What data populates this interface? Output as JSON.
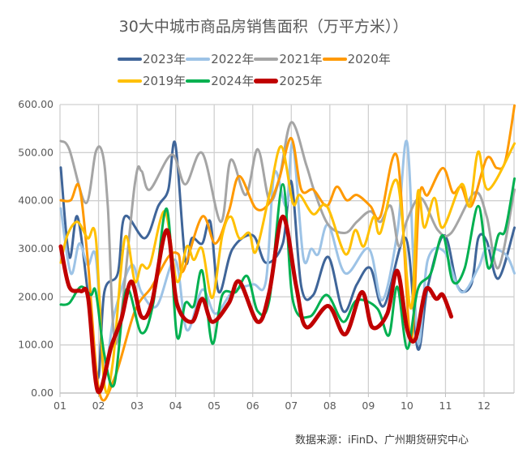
{
  "chart_data": {
    "type": "line",
    "title": "30大中城市商品房销售面积（万平方米））",
    "xlabel": "",
    "ylabel": "",
    "ylim": [
      0,
      600
    ],
    "xlim": [
      1,
      12.79
    ],
    "grid": true,
    "legend_position": "top",
    "x_ticks": [
      "01",
      "02",
      "03",
      "04",
      "05",
      "06",
      "07",
      "08",
      "09",
      "10",
      "11",
      "12"
    ],
    "y_ticks": [
      "0.00",
      "100.00",
      "200.00",
      "300.00",
      "400.00",
      "500.00",
      "600.00"
    ],
    "series": [
      {
        "name": "2023年",
        "color": "#3F6599",
        "width": 3,
        "points": [
          [
            1.02,
            469
          ],
          [
            1.24,
            283
          ],
          [
            1.45,
            367
          ],
          [
            1.72,
            210
          ],
          [
            1.98,
            30
          ],
          [
            2.15,
            210
          ],
          [
            2.5,
            249
          ],
          [
            2.68,
            367
          ],
          [
            3.2,
            322
          ],
          [
            3.55,
            389
          ],
          [
            3.81,
            423
          ],
          [
            3.99,
            519
          ],
          [
            4.25,
            277
          ],
          [
            4.42,
            322
          ],
          [
            4.69,
            311
          ],
          [
            4.9,
            356
          ],
          [
            5.12,
            210
          ],
          [
            5.47,
            299
          ],
          [
            6.0,
            328
          ],
          [
            6.34,
            271
          ],
          [
            6.78,
            311
          ],
          [
            7.0,
            440
          ],
          [
            7.26,
            221
          ],
          [
            7.57,
            204
          ],
          [
            7.96,
            283
          ],
          [
            8.35,
            170
          ],
          [
            8.7,
            226
          ],
          [
            9.05,
            260
          ],
          [
            9.4,
            181
          ],
          [
            9.97,
            322
          ],
          [
            10.28,
            92
          ],
          [
            10.54,
            221
          ],
          [
            10.97,
            328
          ],
          [
            11.32,
            221
          ],
          [
            11.67,
            226
          ],
          [
            11.85,
            322
          ],
          [
            12.07,
            316
          ],
          [
            12.37,
            238
          ],
          [
            12.79,
            344
          ]
        ]
      },
      {
        "name": "2022年",
        "color": "#9DC3E6",
        "width": 3,
        "points": [
          [
            1.02,
            384
          ],
          [
            1.28,
            249
          ],
          [
            1.5,
            311
          ],
          [
            1.72,
            266
          ],
          [
            1.93,
            283
          ],
          [
            2.15,
            52
          ],
          [
            2.41,
            165
          ],
          [
            2.85,
            266
          ],
          [
            3.11,
            210
          ],
          [
            3.51,
            181
          ],
          [
            3.99,
            277
          ],
          [
            4.29,
            131
          ],
          [
            4.69,
            215
          ],
          [
            5.03,
            165
          ],
          [
            5.47,
            210
          ],
          [
            6.0,
            226
          ],
          [
            6.34,
            232
          ],
          [
            6.56,
            457
          ],
          [
            6.87,
            389
          ],
          [
            7.04,
            519
          ],
          [
            7.31,
            283
          ],
          [
            7.52,
            300
          ],
          [
            7.7,
            289
          ],
          [
            7.96,
            350
          ],
          [
            8.4,
            249
          ],
          [
            9.01,
            300
          ],
          [
            9.36,
            193
          ],
          [
            9.75,
            333
          ],
          [
            10.01,
            519
          ],
          [
            10.28,
            108
          ],
          [
            10.54,
            277
          ],
          [
            10.97,
            294
          ],
          [
            11.41,
            210
          ],
          [
            11.85,
            260
          ],
          [
            12.07,
            300
          ],
          [
            12.55,
            289
          ],
          [
            12.79,
            249
          ]
        ]
      },
      {
        "name": "2021年",
        "color": "#A5A5A5",
        "width": 3,
        "points": [
          [
            1.02,
            524
          ],
          [
            1.24,
            507
          ],
          [
            1.67,
            395
          ],
          [
            1.93,
            502
          ],
          [
            2.11,
            496
          ],
          [
            2.24,
            389
          ],
          [
            2.46,
            103
          ],
          [
            2.94,
            434
          ],
          [
            3.11,
            462
          ],
          [
            3.33,
            423
          ],
          [
            3.9,
            496
          ],
          [
            4.25,
            434
          ],
          [
            4.69,
            499
          ],
          [
            5.17,
            356
          ],
          [
            5.43,
            485
          ],
          [
            5.82,
            412
          ],
          [
            6.13,
            507
          ],
          [
            6.43,
            401
          ],
          [
            6.69,
            446
          ],
          [
            7.0,
            563
          ],
          [
            7.39,
            474
          ],
          [
            7.61,
            417
          ],
          [
            7.96,
            350
          ],
          [
            8.4,
            333
          ],
          [
            8.7,
            356
          ],
          [
            9.05,
            378
          ],
          [
            9.31,
            356
          ],
          [
            9.58,
            389
          ],
          [
            9.79,
            305
          ],
          [
            10.01,
            361
          ],
          [
            10.36,
            406
          ],
          [
            10.8,
            339
          ],
          [
            11.15,
            333
          ],
          [
            11.76,
            417
          ],
          [
            12.07,
            367
          ],
          [
            12.37,
            260
          ],
          [
            12.79,
            423
          ]
        ]
      },
      {
        "name": "2020年",
        "color": "#FF9900",
        "width": 3,
        "points": [
          [
            1.02,
            401
          ],
          [
            1.28,
            401
          ],
          [
            1.5,
            429
          ],
          [
            1.72,
            277
          ],
          [
            2.02,
            2
          ],
          [
            2.41,
            30
          ],
          [
            2.94,
            170
          ],
          [
            3.38,
            221
          ],
          [
            3.81,
            283
          ],
          [
            4.07,
            289
          ],
          [
            4.2,
            254
          ],
          [
            4.69,
            367
          ],
          [
            5.03,
            311
          ],
          [
            5.38,
            378
          ],
          [
            5.65,
            451
          ],
          [
            6.08,
            384
          ],
          [
            6.43,
            395
          ],
          [
            6.69,
            446
          ],
          [
            7.0,
            530
          ],
          [
            7.26,
            423
          ],
          [
            7.57,
            423
          ],
          [
            7.92,
            389
          ],
          [
            8.18,
            429
          ],
          [
            8.44,
            401
          ],
          [
            8.7,
            412
          ],
          [
            9.05,
            389
          ],
          [
            9.31,
            367
          ],
          [
            9.75,
            490
          ],
          [
            10.1,
            108
          ],
          [
            10.32,
            406
          ],
          [
            10.54,
            412
          ],
          [
            10.93,
            468
          ],
          [
            11.19,
            417
          ],
          [
            11.41,
            429
          ],
          [
            11.67,
            389
          ],
          [
            12.07,
            488
          ],
          [
            12.33,
            468
          ],
          [
            12.55,
            482
          ],
          [
            12.79,
            598
          ]
        ]
      },
      {
        "name": "2019年",
        "color": "#FFC000",
        "width": 3,
        "points": [
          [
            1.02,
            271
          ],
          [
            1.19,
            328
          ],
          [
            1.45,
            356
          ],
          [
            1.72,
            322
          ],
          [
            1.93,
            322
          ],
          [
            2.15,
            19
          ],
          [
            2.37,
            63
          ],
          [
            2.68,
            322
          ],
          [
            2.94,
            232
          ],
          [
            3.11,
            266
          ],
          [
            3.33,
            266
          ],
          [
            3.72,
            378
          ],
          [
            4.03,
            232
          ],
          [
            4.29,
            305
          ],
          [
            4.47,
            277
          ],
          [
            4.69,
            300
          ],
          [
            4.95,
            198
          ],
          [
            5.21,
            328
          ],
          [
            5.43,
            367
          ],
          [
            5.65,
            322
          ],
          [
            5.91,
            333
          ],
          [
            6.08,
            294
          ],
          [
            6.43,
            412
          ],
          [
            6.74,
            513
          ],
          [
            7.04,
            395
          ],
          [
            7.22,
            412
          ],
          [
            7.57,
            372
          ],
          [
            7.92,
            389
          ],
          [
            8.4,
            289
          ],
          [
            8.66,
            339
          ],
          [
            8.88,
            305
          ],
          [
            9.14,
            367
          ],
          [
            9.31,
            333
          ],
          [
            9.75,
            440
          ],
          [
            10.1,
            176
          ],
          [
            10.28,
            417
          ],
          [
            10.45,
            344
          ],
          [
            10.71,
            406
          ],
          [
            10.93,
            344
          ],
          [
            11.41,
            434
          ],
          [
            11.63,
            389
          ],
          [
            11.85,
            502
          ],
          [
            12.11,
            423
          ],
          [
            12.79,
            519
          ]
        ]
      },
      {
        "name": "2024年",
        "color": "#00B050",
        "width": 3,
        "points": [
          [
            1.02,
            184
          ],
          [
            1.24,
            187
          ],
          [
            1.54,
            221
          ],
          [
            1.8,
            204
          ],
          [
            1.93,
            210
          ],
          [
            2.15,
            80
          ],
          [
            2.41,
            19
          ],
          [
            2.72,
            215
          ],
          [
            3.11,
            125
          ],
          [
            3.42,
            187
          ],
          [
            3.77,
            383
          ],
          [
            4.03,
            120
          ],
          [
            4.25,
            187
          ],
          [
            4.47,
            181
          ],
          [
            4.69,
            254
          ],
          [
            4.95,
            103
          ],
          [
            5.21,
            204
          ],
          [
            5.56,
            210
          ],
          [
            5.86,
            243
          ],
          [
            6.13,
            170
          ],
          [
            6.43,
            193
          ],
          [
            6.78,
            434
          ],
          [
            7.04,
            193
          ],
          [
            7.48,
            159
          ],
          [
            7.92,
            204
          ],
          [
            8.35,
            148
          ],
          [
            8.7,
            193
          ],
          [
            9.23,
            176
          ],
          [
            9.53,
            120
          ],
          [
            9.75,
            221
          ],
          [
            10.01,
            92
          ],
          [
            10.28,
            215
          ],
          [
            10.62,
            249
          ],
          [
            10.93,
            328
          ],
          [
            11.19,
            232
          ],
          [
            11.5,
            260
          ],
          [
            11.85,
            389
          ],
          [
            12.11,
            260
          ],
          [
            12.37,
            328
          ],
          [
            12.55,
            339
          ],
          [
            12.79,
            446
          ]
        ]
      },
      {
        "name": "2025年",
        "color": "#C00000",
        "width": 5,
        "points": [
          [
            1.02,
            305
          ],
          [
            1.24,
            221
          ],
          [
            1.54,
            212
          ],
          [
            1.73,
            198
          ],
          [
            1.98,
            4
          ],
          [
            2.33,
            97
          ],
          [
            2.59,
            153
          ],
          [
            2.85,
            232
          ],
          [
            3.11,
            159
          ],
          [
            3.38,
            187
          ],
          [
            3.77,
            339
          ],
          [
            4.03,
            187
          ],
          [
            4.42,
            148
          ],
          [
            4.69,
            196
          ],
          [
            4.95,
            148
          ],
          [
            5.38,
            187
          ],
          [
            5.65,
            232
          ],
          [
            6.13,
            148
          ],
          [
            6.43,
            210
          ],
          [
            6.78,
            367
          ],
          [
            7.13,
            221
          ],
          [
            7.39,
            137
          ],
          [
            7.96,
            181
          ],
          [
            8.4,
            122
          ],
          [
            8.83,
            210
          ],
          [
            9.1,
            137
          ],
          [
            9.49,
            165
          ],
          [
            9.75,
            254
          ],
          [
            10.01,
            131
          ],
          [
            10.23,
            114
          ],
          [
            10.49,
            215
          ],
          [
            10.76,
            196
          ],
          [
            10.93,
            204
          ],
          [
            11.15,
            159
          ]
        ]
      }
    ]
  },
  "source": "数据来源：iFinD、广州期货研究中心"
}
